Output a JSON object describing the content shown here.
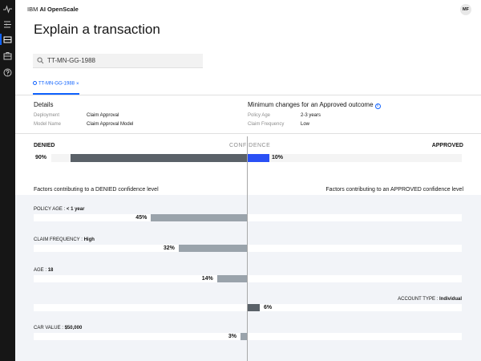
{
  "app": {
    "brand_prefix": "IBM",
    "brand_name": "AI OpenScale",
    "user_initials": "MF"
  },
  "page": {
    "title": "Explain a transaction"
  },
  "search": {
    "value": "TT-MN-GG-1988"
  },
  "tab": {
    "label": "TT-MN-GG-1988",
    "close": "×"
  },
  "details": {
    "heading": "Details",
    "rows": [
      {
        "key": "Deployment",
        "value": "Claim Approval"
      },
      {
        "key": "Model Name",
        "value": "Claim Approval Model"
      }
    ]
  },
  "min_changes": {
    "heading": "Minimum changes for an Approved outcome",
    "info": "i",
    "rows": [
      {
        "key": "Policy Age",
        "value": "2-3 years"
      },
      {
        "key": "Claim Frequency",
        "value": "Low"
      }
    ]
  },
  "confidence": {
    "label": "CONFIDENCE",
    "denied_label": "DENIED",
    "approved_label": "APPROVED",
    "denied_pct": 90,
    "approved_pct": 10,
    "denied_text": "90%",
    "approved_text": "10%"
  },
  "factors": {
    "denied_heading": "Factors contributing to a DENIED confidence level",
    "approved_heading": "Factors contributing to an APPROVED confidence level",
    "items": [
      {
        "name": "POLICY AGE",
        "value": "< 1 year",
        "side": "denied",
        "pct": 45,
        "pct_text": "45%"
      },
      {
        "name": "CLAIM FREQUENCY",
        "value": "High",
        "side": "denied",
        "pct": 32,
        "pct_text": "32%"
      },
      {
        "name": "AGE",
        "value": "18",
        "side": "denied",
        "pct": 14,
        "pct_text": "14%"
      },
      {
        "name": "ACCOUNT TYPE",
        "value": "Individual",
        "side": "approved",
        "pct": 6,
        "pct_text": "6%"
      },
      {
        "name": "CAR VALUE",
        "value": "$50,000",
        "side": "denied",
        "pct": 3,
        "pct_text": "3%"
      }
    ]
  },
  "colors": {
    "accent": "#0f62fe",
    "denied_bar": "#5a6168",
    "approved_bar": "#2a50f5",
    "factor_bar": "#9aa3ab"
  },
  "icons": [
    "activity-icon",
    "deployments-icon",
    "transactions-icon",
    "dashboard-icon",
    "help-icon",
    "search-icon",
    "info-icon"
  ]
}
